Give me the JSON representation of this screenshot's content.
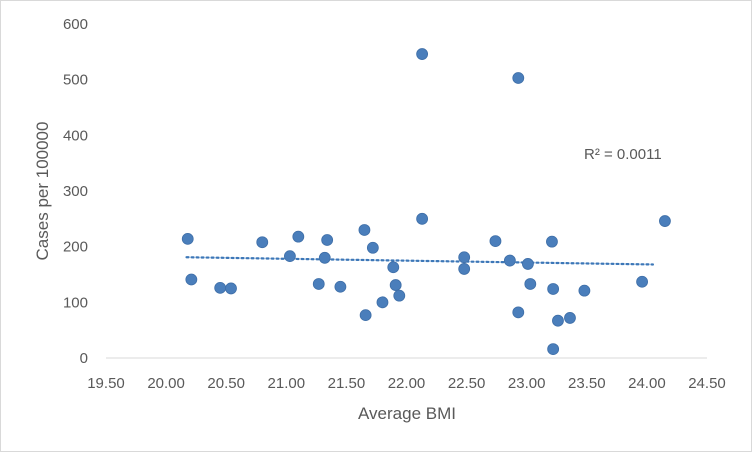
{
  "chart_data": {
    "type": "scatter",
    "title": "",
    "xlabel": "Average BMI",
    "ylabel": "Cases per 100000",
    "xlim": [
      19.5,
      24.5
    ],
    "ylim": [
      0,
      600
    ],
    "x_ticks": [
      "19.50",
      "20.00",
      "20.50",
      "21.00",
      "21.50",
      "22.00",
      "22.50",
      "23.00",
      "23.50",
      "24.00",
      "24.50"
    ],
    "y_ticks": [
      "0",
      "100",
      "200",
      "300",
      "400",
      "500",
      "600"
    ],
    "grid": false,
    "legend": "none",
    "marker_color": "#4a7ebb",
    "trendline": {
      "type": "linear",
      "style": "dotted",
      "color": "#3c77b8",
      "from": [
        20.17,
        181
      ],
      "to": [
        24.05,
        168
      ],
      "r2_label": "R² = 0.0011"
    },
    "series": [
      {
        "points": [
          [
            20.18,
            214
          ],
          [
            20.21,
            141
          ],
          [
            20.45,
            126
          ],
          [
            20.54,
            125
          ],
          [
            20.8,
            208
          ],
          [
            21.03,
            183
          ],
          [
            21.1,
            218
          ],
          [
            21.27,
            133
          ],
          [
            21.32,
            180
          ],
          [
            21.34,
            212
          ],
          [
            21.45,
            128
          ],
          [
            21.65,
            230
          ],
          [
            21.66,
            77
          ],
          [
            21.72,
            198
          ],
          [
            21.8,
            100
          ],
          [
            21.89,
            163
          ],
          [
            21.91,
            131
          ],
          [
            21.94,
            112
          ],
          [
            22.13,
            250
          ],
          [
            22.13,
            546
          ],
          [
            22.48,
            181
          ],
          [
            22.48,
            160
          ],
          [
            22.74,
            210
          ],
          [
            22.86,
            175
          ],
          [
            22.93,
            82
          ],
          [
            22.93,
            503
          ],
          [
            23.01,
            169
          ],
          [
            23.03,
            133
          ],
          [
            23.21,
            209
          ],
          [
            23.22,
            124
          ],
          [
            23.22,
            16
          ],
          [
            23.26,
            67
          ],
          [
            23.36,
            72
          ],
          [
            23.48,
            121
          ],
          [
            23.96,
            137
          ],
          [
            24.15,
            246
          ]
        ]
      }
    ]
  }
}
